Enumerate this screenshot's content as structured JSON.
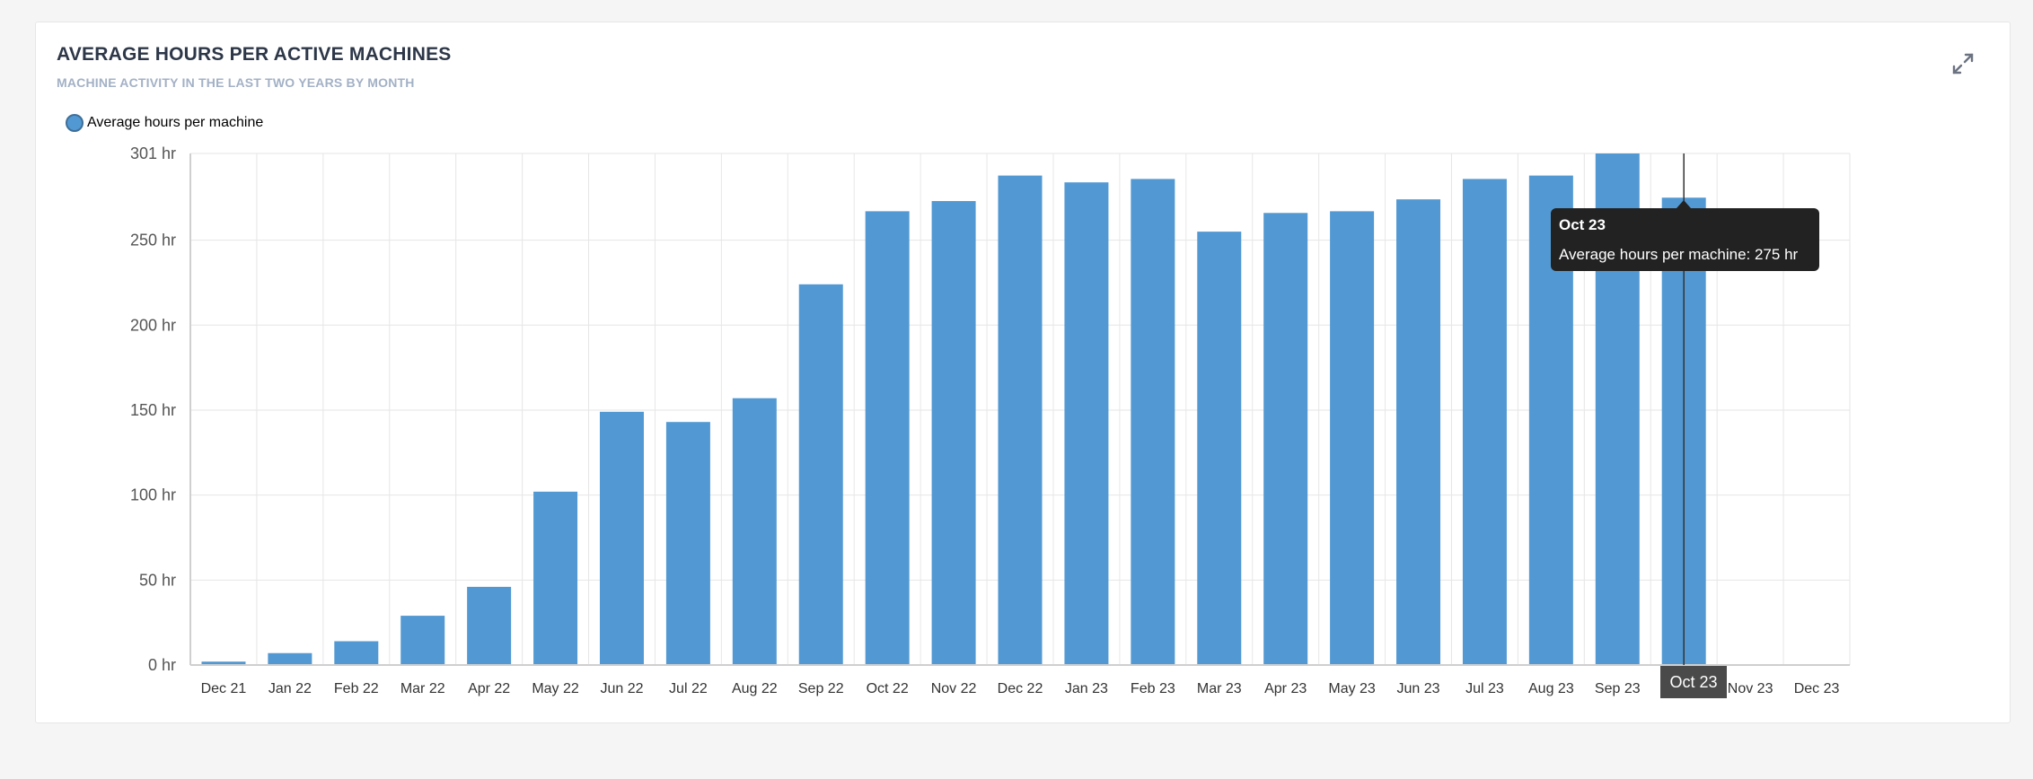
{
  "header": {
    "title": "AVERAGE HOURS PER ACTIVE MACHINES",
    "subtitle": "MACHINE ACTIVITY IN THE LAST TWO YEARS BY MONTH",
    "expand_icon": "expand-arrows-icon"
  },
  "legend": {
    "label": "Average hours per machine",
    "color": "#5299d3"
  },
  "tooltip": {
    "title": "Oct 23",
    "body": "Average hours per machine: 275 hr"
  },
  "axis_flag": "Oct 23",
  "chart_data": {
    "type": "bar",
    "title": "AVERAGE HOURS PER ACTIVE MACHINES",
    "subtitle": "MACHINE ACTIVITY IN THE LAST TWO YEARS BY MONTH",
    "xlabel": "",
    "ylabel": "",
    "ylim": [
      0,
      301
    ],
    "y_ticks": [
      "0 hr",
      "50 hr",
      "100 hr",
      "150 hr",
      "200 hr",
      "250 hr",
      "301 hr"
    ],
    "y_tick_values": [
      0,
      50,
      100,
      150,
      200,
      250,
      301
    ],
    "grid": true,
    "legend_position": "top-left",
    "bar_color": "#5299d3",
    "categories": [
      "Dec 21",
      "Jan 22",
      "Feb 22",
      "Mar 22",
      "Apr 22",
      "May 22",
      "Jun 22",
      "Jul 22",
      "Aug 22",
      "Sep 22",
      "Oct 22",
      "Nov 22",
      "Dec 22",
      "Jan 23",
      "Feb 23",
      "Mar 23",
      "Apr 23",
      "May 23",
      "Jun 23",
      "Jul 23",
      "Aug 23",
      "Sep 23",
      "Oct 23",
      "Nov 23",
      "Dec 23"
    ],
    "series": [
      {
        "name": "Average hours per machine",
        "values": [
          2,
          7,
          14,
          29,
          46,
          102,
          149,
          143,
          157,
          224,
          267,
          273,
          288,
          284,
          286,
          255,
          266,
          267,
          274,
          286,
          288,
          301,
          275,
          0,
          0
        ]
      }
    ],
    "highlighted_category": "Oct 23"
  }
}
